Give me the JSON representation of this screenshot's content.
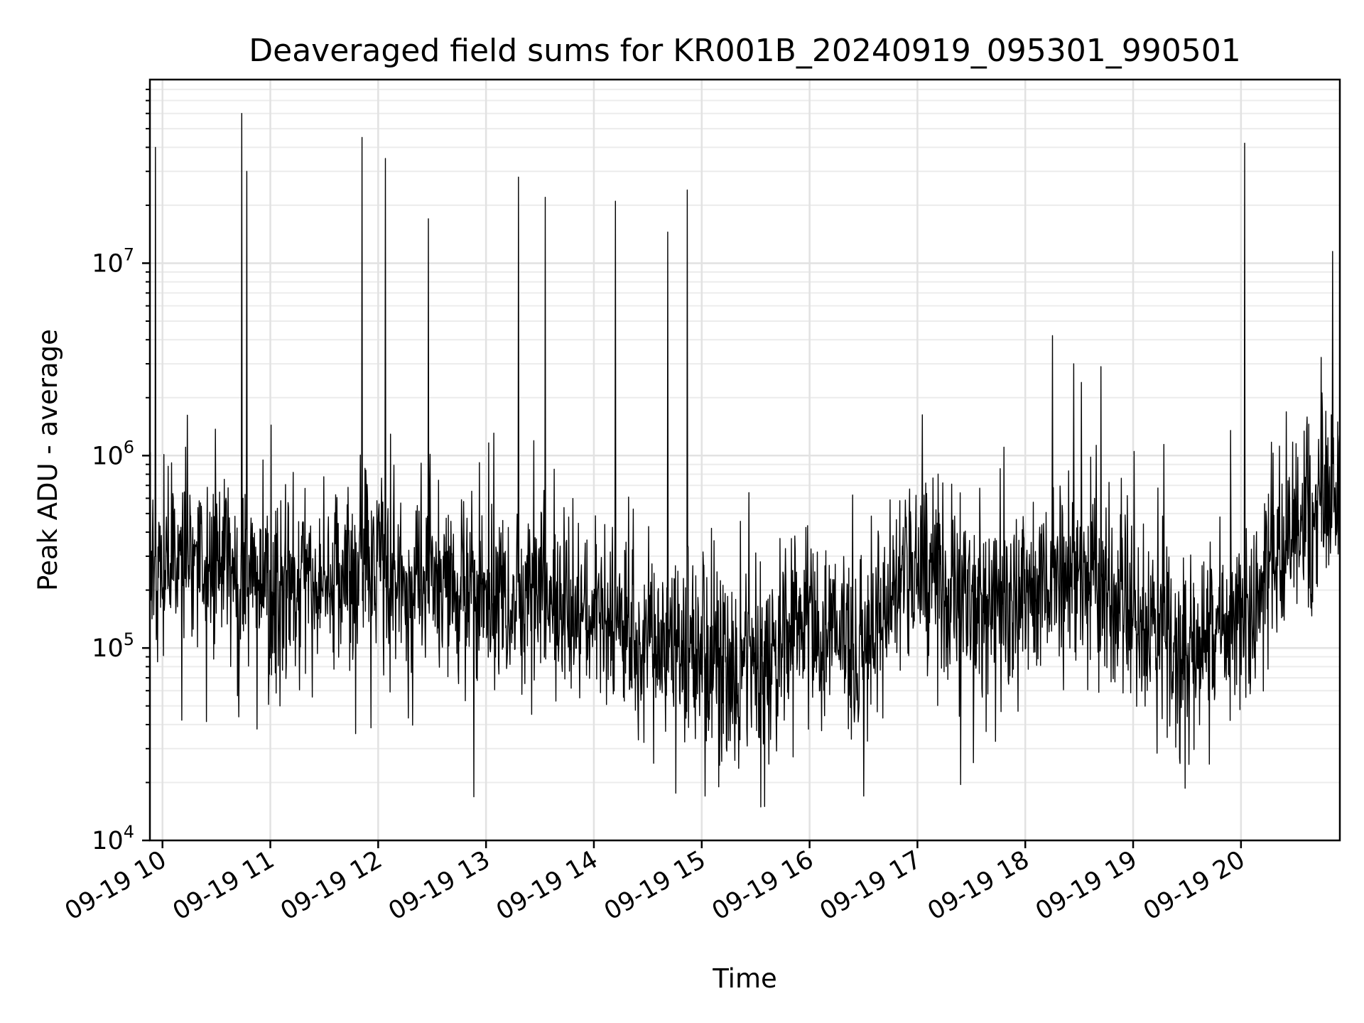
{
  "chart_data": {
    "type": "line",
    "title": "Deaveraged field sums for KR001B_20240919_095301_990501",
    "xlabel": "Time",
    "ylabel": "Peak ADU - average",
    "x_axis": {
      "kind": "time",
      "start": "2024-09-19T09:53",
      "end": "2024-09-19T20:55",
      "tick_labels": [
        "09-19 10",
        "09-19 11",
        "09-19 12",
        "09-19 13",
        "09-19 14",
        "09-19 15",
        "09-19 16",
        "09-19 17",
        "09-19 18",
        "09-19 19",
        "09-19 20"
      ],
      "tick_times": [
        "2024-09-19T10:00",
        "2024-09-19T11:00",
        "2024-09-19T12:00",
        "2024-09-19T13:00",
        "2024-09-19T14:00",
        "2024-09-19T15:00",
        "2024-09-19T16:00",
        "2024-09-19T17:00",
        "2024-09-19T18:00",
        "2024-09-19T19:00",
        "2024-09-19T20:00"
      ]
    },
    "y_axis": {
      "scale": "log",
      "range": [
        10000,
        90000000
      ],
      "tick_values": [
        10000,
        100000,
        1000000,
        10000000
      ],
      "tick_labels": [
        {
          "base": "10",
          "exp": "4"
        },
        {
          "base": "10",
          "exp": "5"
        },
        {
          "base": "10",
          "exp": "6"
        },
        {
          "base": "10",
          "exp": "7"
        }
      ]
    },
    "grid": {
      "major": true,
      "minor": true
    },
    "series": [
      {
        "color": "#000000",
        "baseline": {
          "times": [
            "2024-09-19T09:53",
            "2024-09-19T10:30",
            "2024-09-19T11:00",
            "2024-09-19T12:00",
            "2024-09-19T13:00",
            "2024-09-19T14:00",
            "2024-09-19T14:45",
            "2024-09-19T15:30",
            "2024-09-19T16:00",
            "2024-09-19T16:30",
            "2024-09-19T16:55",
            "2024-09-19T17:30",
            "2024-09-19T18:30",
            "2024-09-19T19:00",
            "2024-09-19T19:30",
            "2024-09-19T20:00",
            "2024-09-19T20:30",
            "2024-09-19T20:55"
          ],
          "values": [
            250000,
            300000,
            180000,
            250000,
            200000,
            150000,
            100000,
            70000,
            150000,
            90000,
            300000,
            150000,
            250000,
            150000,
            90000,
            150000,
            400000,
            600000
          ]
        },
        "spikes": [
          {
            "time": "2024-09-19T09:56",
            "value": 40000000
          },
          {
            "time": "2024-09-19T10:44",
            "value": 60000000
          },
          {
            "time": "2024-09-19T10:47",
            "value": 30000000
          },
          {
            "time": "2024-09-19T11:51",
            "value": 45000000
          },
          {
            "time": "2024-09-19T12:04",
            "value": 35000000
          },
          {
            "time": "2024-09-19T12:28",
            "value": 17000000
          },
          {
            "time": "2024-09-19T13:18",
            "value": 28000000
          },
          {
            "time": "2024-09-19T13:33",
            "value": 22000000
          },
          {
            "time": "2024-09-19T14:12",
            "value": 21000000
          },
          {
            "time": "2024-09-19T14:41",
            "value": 14500000
          },
          {
            "time": "2024-09-19T14:52",
            "value": 24000000
          },
          {
            "time": "2024-09-19T18:15",
            "value": 4200000
          },
          {
            "time": "2024-09-19T18:27",
            "value": 3000000
          },
          {
            "time": "2024-09-19T18:42",
            "value": 2900000
          },
          {
            "time": "2024-09-19T20:02",
            "value": 42000000
          },
          {
            "time": "2024-09-19T20:51",
            "value": 11500000
          }
        ],
        "minima": [
          {
            "time": "2024-09-19T15:02",
            "value": 17000
          },
          {
            "time": "2024-09-19T15:35",
            "value": 15000
          },
          {
            "time": "2024-09-19T16:30",
            "value": 17000
          },
          {
            "time": "2024-09-19T17:24",
            "value": 19500
          }
        ]
      }
    ]
  }
}
